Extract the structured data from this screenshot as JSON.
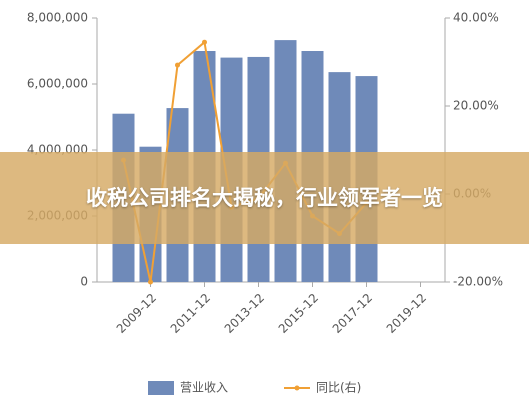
{
  "chart_data": {
    "type": "bar_line",
    "banner": "收税公司排名大揭秘，行业领军者一览",
    "categories": [
      null,
      "2009-12",
      null,
      "2011-12",
      null,
      "2013-12",
      null,
      "2015-12",
      null,
      "2017-12",
      null,
      "2019-12"
    ],
    "series": [
      {
        "name": "营业收入",
        "type": "bar",
        "color": "#6f8ab9",
        "values": [
          5100000,
          4100000,
          5270000,
          7000000,
          6800000,
          6820000,
          7330000,
          7000000,
          6360000,
          6240000,
          null,
          null
        ]
      },
      {
        "name": "同比(右)",
        "type": "line",
        "axis": "y2",
        "color": "#f0a035",
        "values": [
          7.7,
          -20,
          29.3,
          34.5,
          -3,
          -1,
          7,
          -5,
          -9,
          -2,
          null,
          null
        ]
      }
    ],
    "ylim": [
      0,
      8000000
    ],
    "yticks": [
      0,
      {
        "value": 2000000,
        "label": "2,000,000"
      },
      {
        "value": 4000000,
        "label": "4,000,000"
      },
      {
        "value": 6000000,
        "label": "6,000,000"
      },
      {
        "value": 8000000,
        "label": "8,000,000"
      }
    ],
    "y2lim": [
      -20,
      40
    ],
    "y2ticks": [
      {
        "value": -20,
        "label": "-20.00%"
      },
      {
        "value": 0,
        "label": "0.00%"
      },
      {
        "value": 20,
        "label": "20.00%"
      },
      {
        "value": 40,
        "label": "40.00%"
      }
    ]
  }
}
